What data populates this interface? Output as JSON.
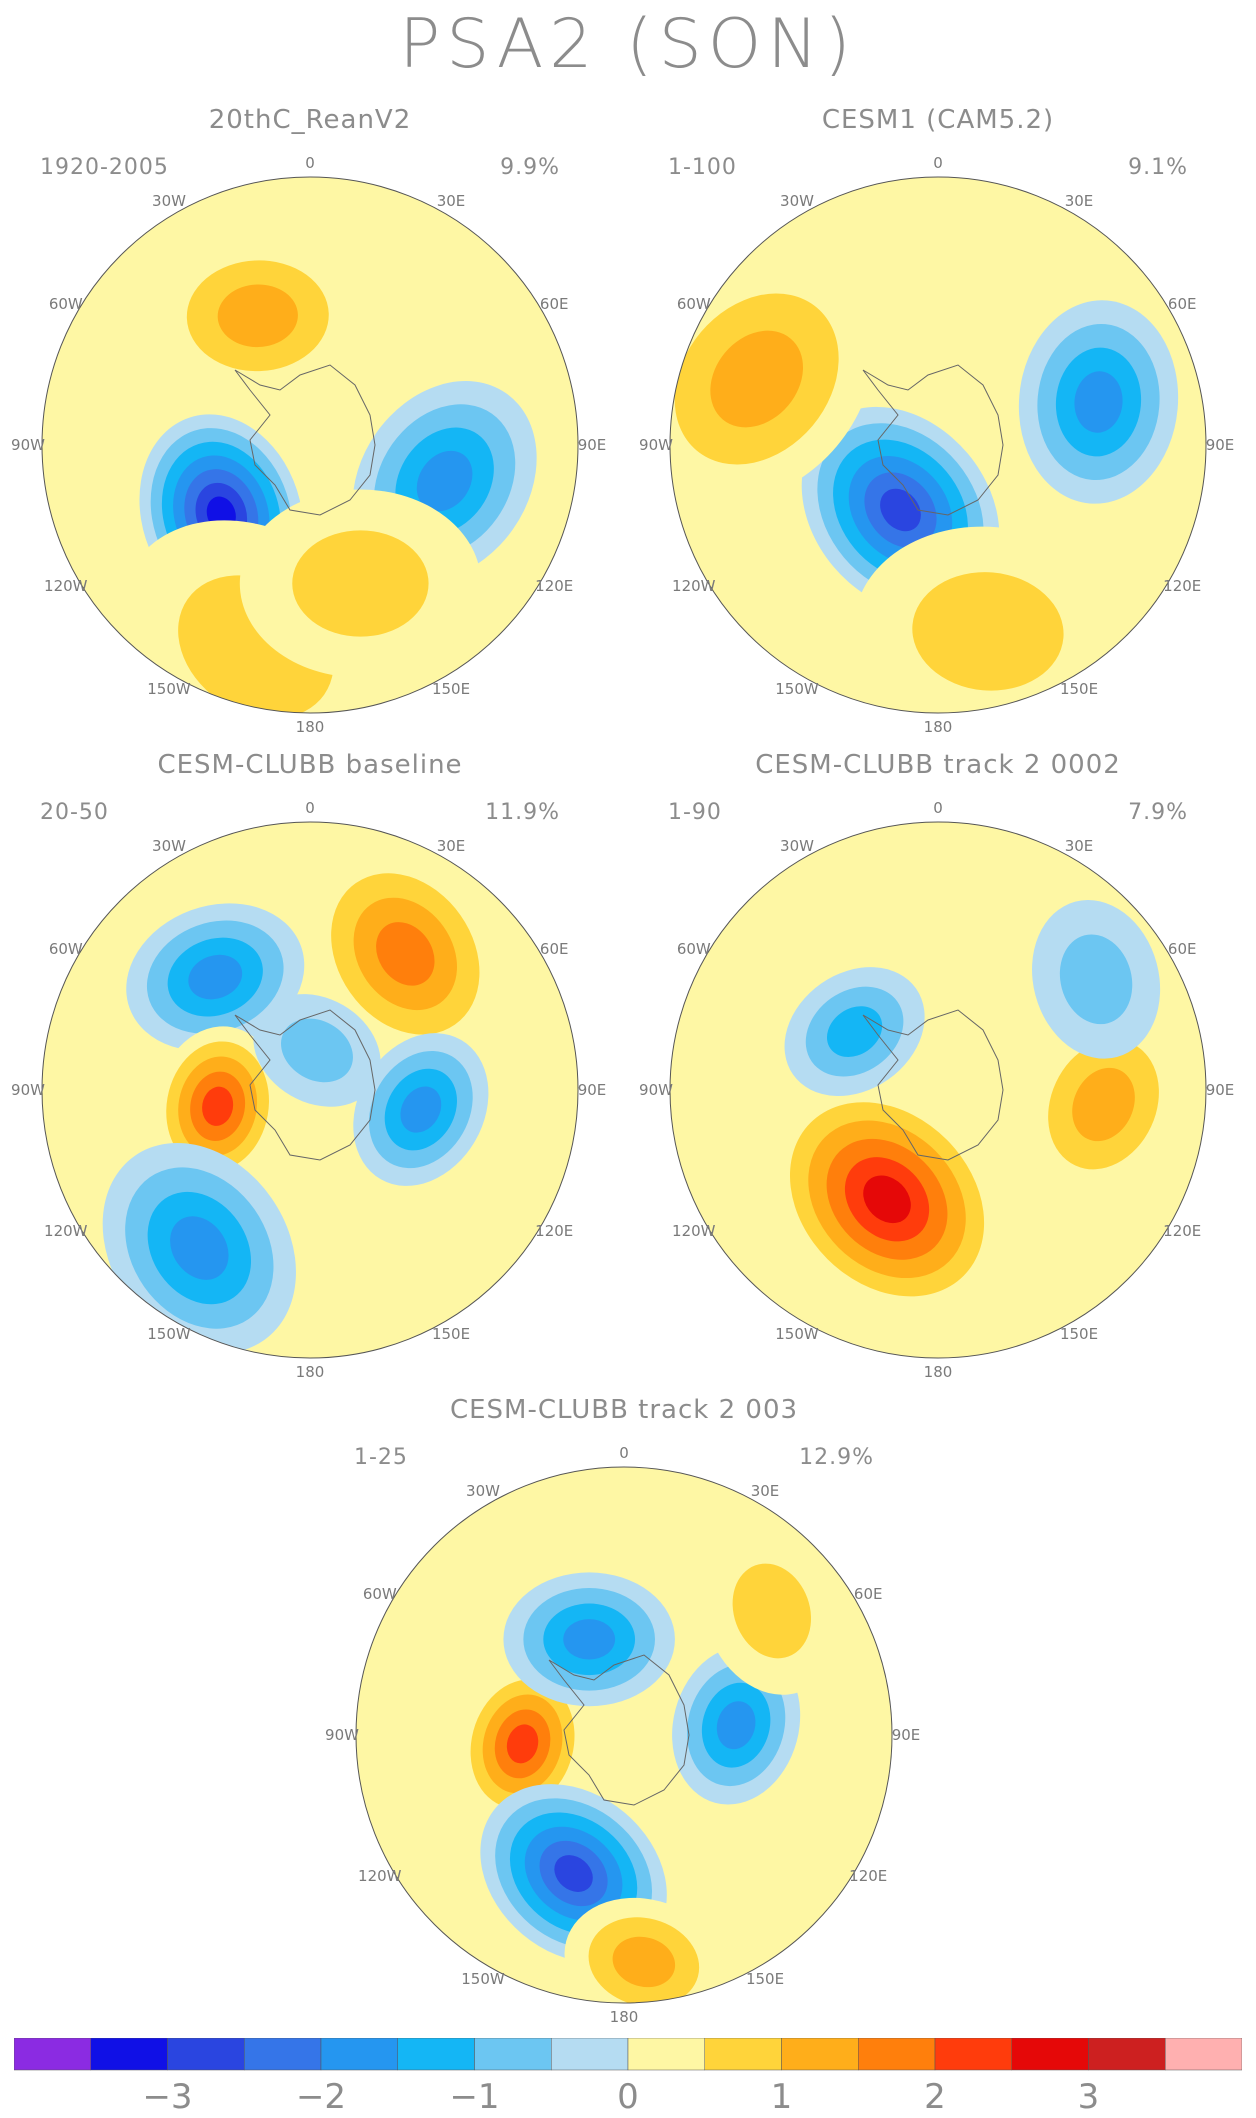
{
  "title": "PSA2 (SON)",
  "longitude_labels": [
    "0",
    "30E",
    "60E",
    "90E",
    "120E",
    "150E",
    "180",
    "150W",
    "120W",
    "90W",
    "60W",
    "30W"
  ],
  "panels": [
    {
      "title": "20thC_ReanV2",
      "period": "1920-2005",
      "variance": "9.9%",
      "anomalies": [
        {
          "angle": -128,
          "r": 0.42,
          "value": -3.1,
          "size": 0.38
        },
        {
          "angle": -22,
          "r": 0.52,
          "value": 1.4,
          "size": 0.38
        },
        {
          "angle": 105,
          "r": 0.52,
          "value": -1.6,
          "size": 0.4
        },
        {
          "angle": -165,
          "r": 0.78,
          "value": 0.9,
          "size": 0.55
        },
        {
          "angle": 160,
          "r": 0.55,
          "value": 0.6,
          "size": 0.45
        }
      ]
    },
    {
      "title": "CESM1 (CAM5.2)",
      "period": "1-100",
      "variance": "9.1%",
      "anomalies": [
        {
          "angle": -150,
          "r": 0.28,
          "value": -2.6,
          "size": 0.42
        },
        {
          "angle": 75,
          "r": 0.62,
          "value": -1.7,
          "size": 0.38
        },
        {
          "angle": -70,
          "r": 0.72,
          "value": 1.2,
          "size": 0.5
        },
        {
          "angle": 165,
          "r": 0.72,
          "value": 0.9,
          "size": 0.5
        }
      ]
    },
    {
      "title": "CESM-CLUBB baseline",
      "period": "20-50",
      "variance": "11.9%",
      "anomalies": [
        {
          "angle": -40,
          "r": 0.55,
          "value": -2.0,
          "size": 0.34
        },
        {
          "angle": 35,
          "r": 0.62,
          "value": 1.6,
          "size": 0.42
        },
        {
          "angle": -100,
          "r": 0.35,
          "value": 2.3,
          "size": 0.3
        },
        {
          "angle": -145,
          "r": 0.72,
          "value": -2.0,
          "size": 0.42
        },
        {
          "angle": 100,
          "r": 0.42,
          "value": -1.7,
          "size": 0.3
        },
        {
          "angle": 10,
          "r": 0.15,
          "value": -1.0,
          "size": 0.25
        }
      ]
    },
    {
      "title": "CESM-CLUBB track 2 0002",
      "period": "1-90",
      "variance": "7.9%",
      "anomalies": [
        {
          "angle": -155,
          "r": 0.45,
          "value": 2.9,
          "size": 0.48
        },
        {
          "angle": -55,
          "r": 0.38,
          "value": -1.5,
          "size": 0.28
        },
        {
          "angle": 95,
          "r": 0.62,
          "value": 1.4,
          "size": 0.36
        },
        {
          "angle": 55,
          "r": 0.72,
          "value": -1.0,
          "size": 0.3
        }
      ]
    },
    {
      "title": "CESM-CLUBB track 2 003",
      "period": "1-25",
      "variance": "12.9%",
      "anomalies": [
        {
          "angle": -95,
          "r": 0.38,
          "value": 2.3,
          "size": 0.3
        },
        {
          "angle": -20,
          "r": 0.38,
          "value": -1.8,
          "size": 0.32
        },
        {
          "angle": 85,
          "r": 0.42,
          "value": -2.0,
          "size": 0.3
        },
        {
          "angle": -160,
          "r": 0.55,
          "value": -2.7,
          "size": 0.38
        },
        {
          "angle": 175,
          "r": 0.85,
          "value": 1.1,
          "size": 0.3
        },
        {
          "angle": 50,
          "r": 0.72,
          "value": 0.9,
          "size": 0.32
        }
      ]
    }
  ],
  "colorbar": {
    "tick_labels": [
      "−3",
      "−2",
      "−1",
      "0",
      "1",
      "2",
      "3"
    ],
    "tick_values": [
      -3,
      -2,
      -1,
      0,
      1,
      2,
      3
    ],
    "levels": [
      -3.5,
      -3,
      -2.5,
      -2,
      -1.5,
      -1,
      -0.5,
      0,
      0.5,
      1,
      1.5,
      2,
      2.5,
      3
    ],
    "colors": [
      "#8b2be2",
      "#1010e6",
      "#2a45e0",
      "#3575e8",
      "#2596f0",
      "#14b6f5",
      "#6cc6f2",
      "#b5dcf2",
      "#fef7a4",
      "#ffd43a",
      "#ffae1a",
      "#ff7f0c",
      "#ff3c0c",
      "#e50808",
      "#cd2020",
      "#ffb0b0"
    ]
  }
}
